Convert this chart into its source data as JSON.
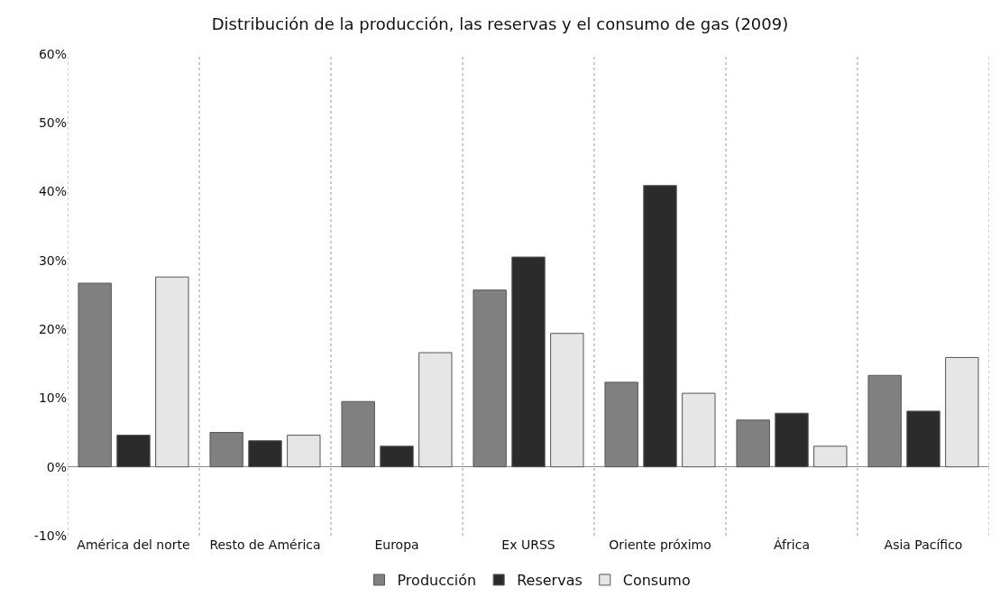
{
  "chart_data": {
    "type": "bar",
    "title": "Distribución de la producción, las reservas y el consumo de gas (2009)",
    "categories": [
      "América del norte",
      "Resto de América",
      "Europa",
      "Ex URSS",
      "Oriente próximo",
      "África",
      "Asia Pacífico"
    ],
    "series": [
      {
        "name": "Producción",
        "color": "#808080",
        "values": [
          26.7,
          5.0,
          9.5,
          25.7,
          12.3,
          6.8,
          13.3
        ]
      },
      {
        "name": "Reservas",
        "color": "#2b2b2b",
        "values": [
          4.6,
          3.8,
          3.0,
          30.5,
          40.9,
          7.8,
          8.1
        ]
      },
      {
        "name": "Consumo",
        "color": "#e6e6e6",
        "values": [
          27.6,
          4.6,
          16.6,
          19.4,
          10.7,
          3.0,
          15.9
        ]
      }
    ],
    "ylim": [
      -10,
      60
    ],
    "yticks": [
      {
        "value": -10,
        "label": "-10%"
      },
      {
        "value": 0,
        "label": "0%"
      },
      {
        "value": 10,
        "label": "10%"
      },
      {
        "value": 20,
        "label": "20%"
      },
      {
        "value": 30,
        "label": "30%"
      },
      {
        "value": 40,
        "label": "40%"
      },
      {
        "value": 50,
        "label": "50%"
      },
      {
        "value": 60,
        "label": "60%"
      }
    ],
    "grid": "x",
    "legend": "bottom"
  }
}
